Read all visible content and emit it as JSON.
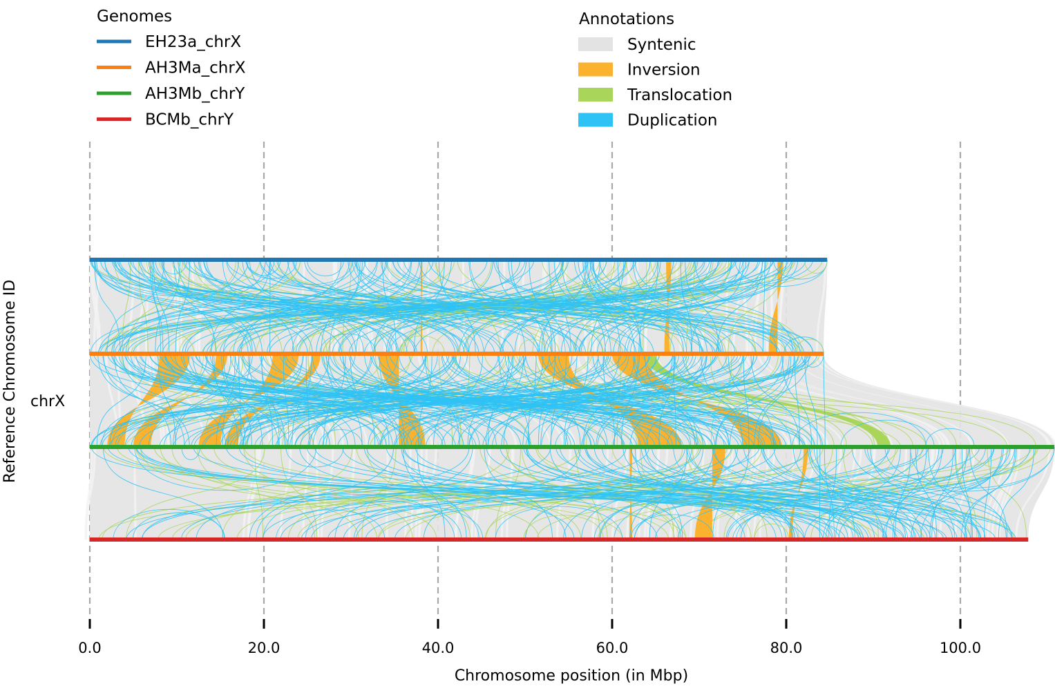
{
  "chart_data": {
    "type": "synteny",
    "xlabel": "Chromosome position (in Mbp)",
    "ylabel": "Reference Chromosome ID",
    "reference_chromosome": "chrX",
    "x_ticks": [
      "0.0",
      "20.0",
      "40.0",
      "60.0",
      "80.0",
      "100.0"
    ],
    "xlim": [
      0,
      110.8
    ],
    "grid": "vertical dashed at ticks",
    "genomes_legend": {
      "title": "Genomes",
      "placement": "top-left",
      "entries": [
        {
          "name": "EH23a_chrX",
          "color": "#1f77b4",
          "length_mbp": 84.7
        },
        {
          "name": "AH3Ma_chrX",
          "color": "#ff7f0e",
          "length_mbp": 84.3
        },
        {
          "name": "AH3Mb_chrY",
          "color": "#2ca02c",
          "length_mbp": 110.8
        },
        {
          "name": "BCMb_chrY",
          "color": "#d62728",
          "length_mbp": 107.8
        }
      ]
    },
    "annotations_legend": {
      "title": "Annotations",
      "placement": "top-center",
      "entries": [
        {
          "name": "Syntenic",
          "color": "#e3e3e3"
        },
        {
          "name": "Inversion",
          "color": "#fbb22f"
        },
        {
          "name": "Translocation",
          "color": "#a9d65a"
        },
        {
          "name": "Duplication",
          "color": "#2fc2f5"
        }
      ]
    },
    "inversions": [
      {
        "pair": [
          0,
          1
        ],
        "a": [
          79.0,
          79.6
        ],
        "b": [
          78.0,
          79.0
        ]
      },
      {
        "pair": [
          0,
          1
        ],
        "a": [
          66.2,
          66.8
        ],
        "b": [
          66.0,
          66.6
        ]
      },
      {
        "pair": [
          0,
          1
        ],
        "a": [
          38.0,
          38.2
        ],
        "b": [
          38.0,
          38.2
        ]
      },
      {
        "pair": [
          1,
          2
        ],
        "a": [
          8.0,
          11.5
        ],
        "b": [
          2.0,
          4.0
        ]
      },
      {
        "pair": [
          1,
          2
        ],
        "a": [
          14.5,
          15.8
        ],
        "b": [
          5.0,
          7.0
        ]
      },
      {
        "pair": [
          1,
          2
        ],
        "a": [
          21.0,
          24.0
        ],
        "b": [
          12.5,
          15.0
        ]
      },
      {
        "pair": [
          1,
          2
        ],
        "a": [
          25.5,
          26.5
        ],
        "b": [
          15.5,
          17.0
        ]
      },
      {
        "pair": [
          1,
          2
        ],
        "a": [
          33.2,
          35.5
        ],
        "b": [
          35.5,
          38.5
        ]
      },
      {
        "pair": [
          1,
          2
        ],
        "a": [
          51.5,
          55.0
        ],
        "b": [
          63.0,
          68.0
        ]
      },
      {
        "pair": [
          1,
          2
        ],
        "a": [
          60.0,
          64.0
        ],
        "b": [
          75.0,
          79.5
        ]
      },
      {
        "pair": [
          2,
          3
        ],
        "a": [
          71.5,
          73.0
        ],
        "b": [
          69.5,
          71.5
        ]
      },
      {
        "pair": [
          2,
          3
        ],
        "a": [
          62.0,
          62.3
        ],
        "b": [
          62.0,
          62.3
        ]
      },
      {
        "pair": [
          2,
          3
        ],
        "a": [
          82.0,
          82.5
        ],
        "b": [
          80.3,
          80.7
        ]
      }
    ],
    "major_translocations": [
      {
        "pair": [
          1,
          2
        ],
        "a": [
          63.5,
          65.0
        ],
        "b": [
          90.5,
          92.0
        ]
      }
    ]
  }
}
